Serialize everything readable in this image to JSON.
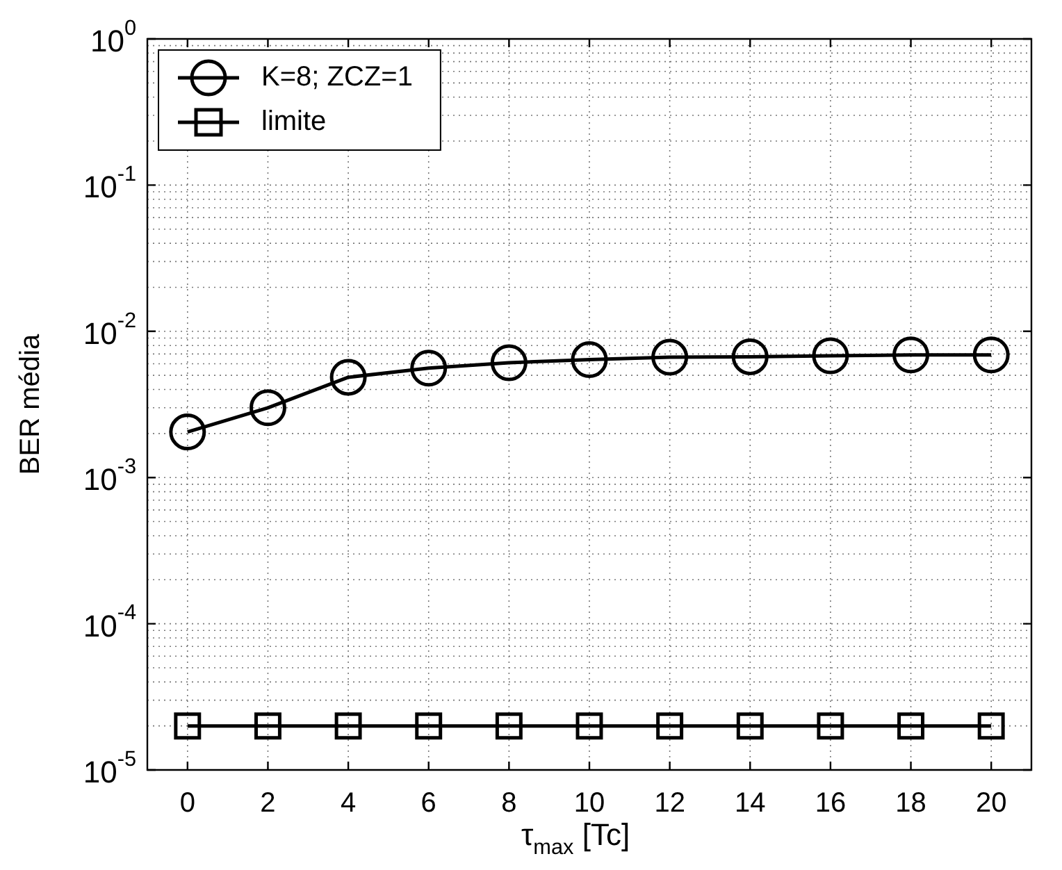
{
  "chart_data": {
    "type": "line",
    "xlabel": "τ$_{max}$ [Tc]",
    "ylabel": "BER média",
    "x": [
      0,
      2,
      4,
      6,
      8,
      10,
      12,
      14,
      16,
      18,
      20
    ],
    "series": [
      {
        "name": "K=8; ZCZ=1",
        "color": "#000000",
        "marker": "circle",
        "values": [
          0.00205,
          0.003,
          0.00485,
          0.0056,
          0.0061,
          0.0064,
          0.00665,
          0.0067,
          0.0068,
          0.0069,
          0.0069
        ]
      },
      {
        "name": "limite",
        "color": "#000000",
        "marker": "square",
        "values": [
          2e-05,
          2e-05,
          2e-05,
          2e-05,
          2e-05,
          2e-05,
          2e-05,
          2e-05,
          2e-05,
          2e-05,
          2e-05
        ]
      }
    ],
    "log": "y",
    "xlim": [
      -1,
      21
    ],
    "xticks": [
      0,
      2,
      4,
      6,
      8,
      10,
      12,
      14,
      16,
      18,
      20
    ],
    "ylim": [
      1e-05,
      1
    ],
    "yticks": [
      {
        "value": 1e-05,
        "label": "10$^{-5}$"
      },
      {
        "value": 0.0001,
        "label": "10$^{-4}$"
      },
      {
        "value": 0.001,
        "label": "10$^{-3}$"
      },
      {
        "value": 0.01,
        "label": "10$^{-2}$"
      },
      {
        "value": 0.1,
        "label": "10$^{-1}$"
      },
      {
        "value": 1,
        "label": "10$^{0}$"
      }
    ],
    "grid": true,
    "legend": "top left",
    "line_style": "solid"
  }
}
